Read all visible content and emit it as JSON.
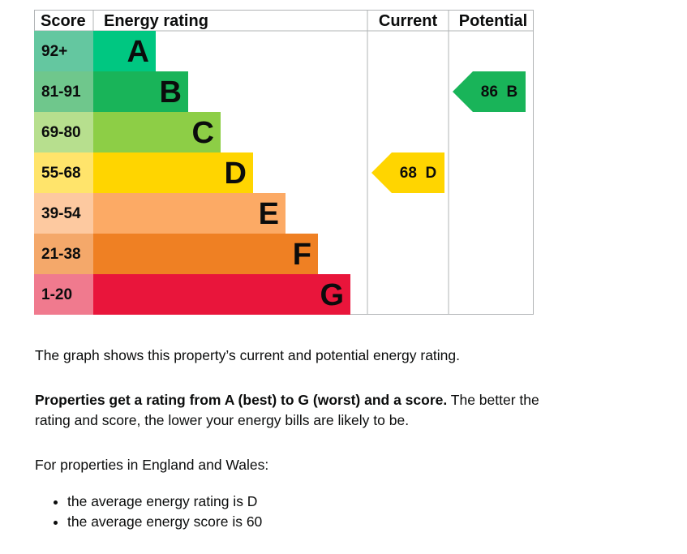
{
  "chart_data": {
    "type": "bar",
    "headers": {
      "score": "Score",
      "rating": "Energy rating",
      "current": "Current",
      "potential": "Potential"
    },
    "bands": [
      {
        "letter": "A",
        "range": "92+",
        "color": "#00c781",
        "score_color": "#64c7a0"
      },
      {
        "letter": "B",
        "range": "81-91",
        "color": "#19b459",
        "score_color": "#6fc78c"
      },
      {
        "letter": "C",
        "range": "69-80",
        "color": "#8dce46",
        "score_color": "#b7df8e"
      },
      {
        "letter": "D",
        "range": "55-68",
        "color": "#ffd500",
        "score_color": "#ffe46b"
      },
      {
        "letter": "E",
        "range": "39-54",
        "color": "#fcaa65",
        "score_color": "#fdc9a0"
      },
      {
        "letter": "F",
        "range": "21-38",
        "color": "#ef8023",
        "score_color": "#f4a86a"
      },
      {
        "letter": "G",
        "range": "1-20",
        "color": "#e9153b",
        "score_color": "#f07a8e"
      }
    ],
    "current": {
      "value": 68,
      "letter": "D",
      "label": "68  D",
      "color": "#ffd500"
    },
    "potential": {
      "value": 86,
      "letter": "B",
      "label": "86  B",
      "color": "#19b459"
    }
  },
  "text": {
    "p1": "The graph shows this property’s current and potential energy rating.",
    "p2_bold": "Properties get a rating from A (best) to G (worst) and a score.",
    "p2_rest": " The better the rating and score, the lower your energy bills are likely to be.",
    "p3": "For properties in England and Wales:",
    "bullets": [
      "the average energy rating is D",
      "the average energy score is 60"
    ]
  }
}
